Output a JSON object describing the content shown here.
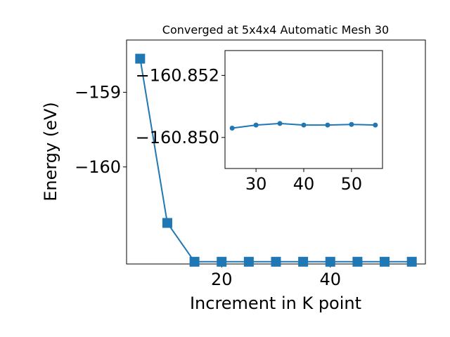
{
  "chart_data": [
    {
      "type": "line",
      "title": "Converged at 5x4x4 Automatic Mesh 30",
      "xlabel": "Increment in K point",
      "ylabel": "Energy (eV)",
      "xlim": [
        2.5,
        57.5
      ],
      "ylim": [
        -161.3,
        -158.3
      ],
      "x_ticks": [
        20,
        40
      ],
      "x_tick_labels": [
        "20",
        "40"
      ],
      "y_ticks": [
        -160,
        -159
      ],
      "y_tick_labels": [
        "−160",
        "−159"
      ],
      "marker": "square",
      "color": "#1f77b4",
      "x": [
        5,
        10,
        15,
        20,
        25,
        30,
        35,
        40,
        45,
        50,
        55
      ],
      "y": [
        -158.55,
        -160.75,
        -161.27,
        -161.27,
        -161.27,
        -161.27,
        -161.27,
        -161.27,
        -161.27,
        -161.27,
        -161.27
      ]
    },
    {
      "type": "line",
      "inset": true,
      "xlim": [
        23.5,
        56.5
      ],
      "ylim": [
        -160.849,
        -160.8528
      ],
      "x_ticks": [
        30,
        40,
        50
      ],
      "x_tick_labels": [
        "30",
        "40",
        "50"
      ],
      "y_ticks": [
        -160.852,
        -160.85
      ],
      "y_tick_labels": [
        "−160.852",
        "−160.850"
      ],
      "marker": "circle",
      "color": "#1f77b4",
      "x": [
        25,
        30,
        35,
        40,
        45,
        50,
        55
      ],
      "y": [
        -160.8503,
        -160.8504,
        -160.85045,
        -160.8504,
        -160.8504,
        -160.85042,
        -160.8504
      ]
    }
  ]
}
